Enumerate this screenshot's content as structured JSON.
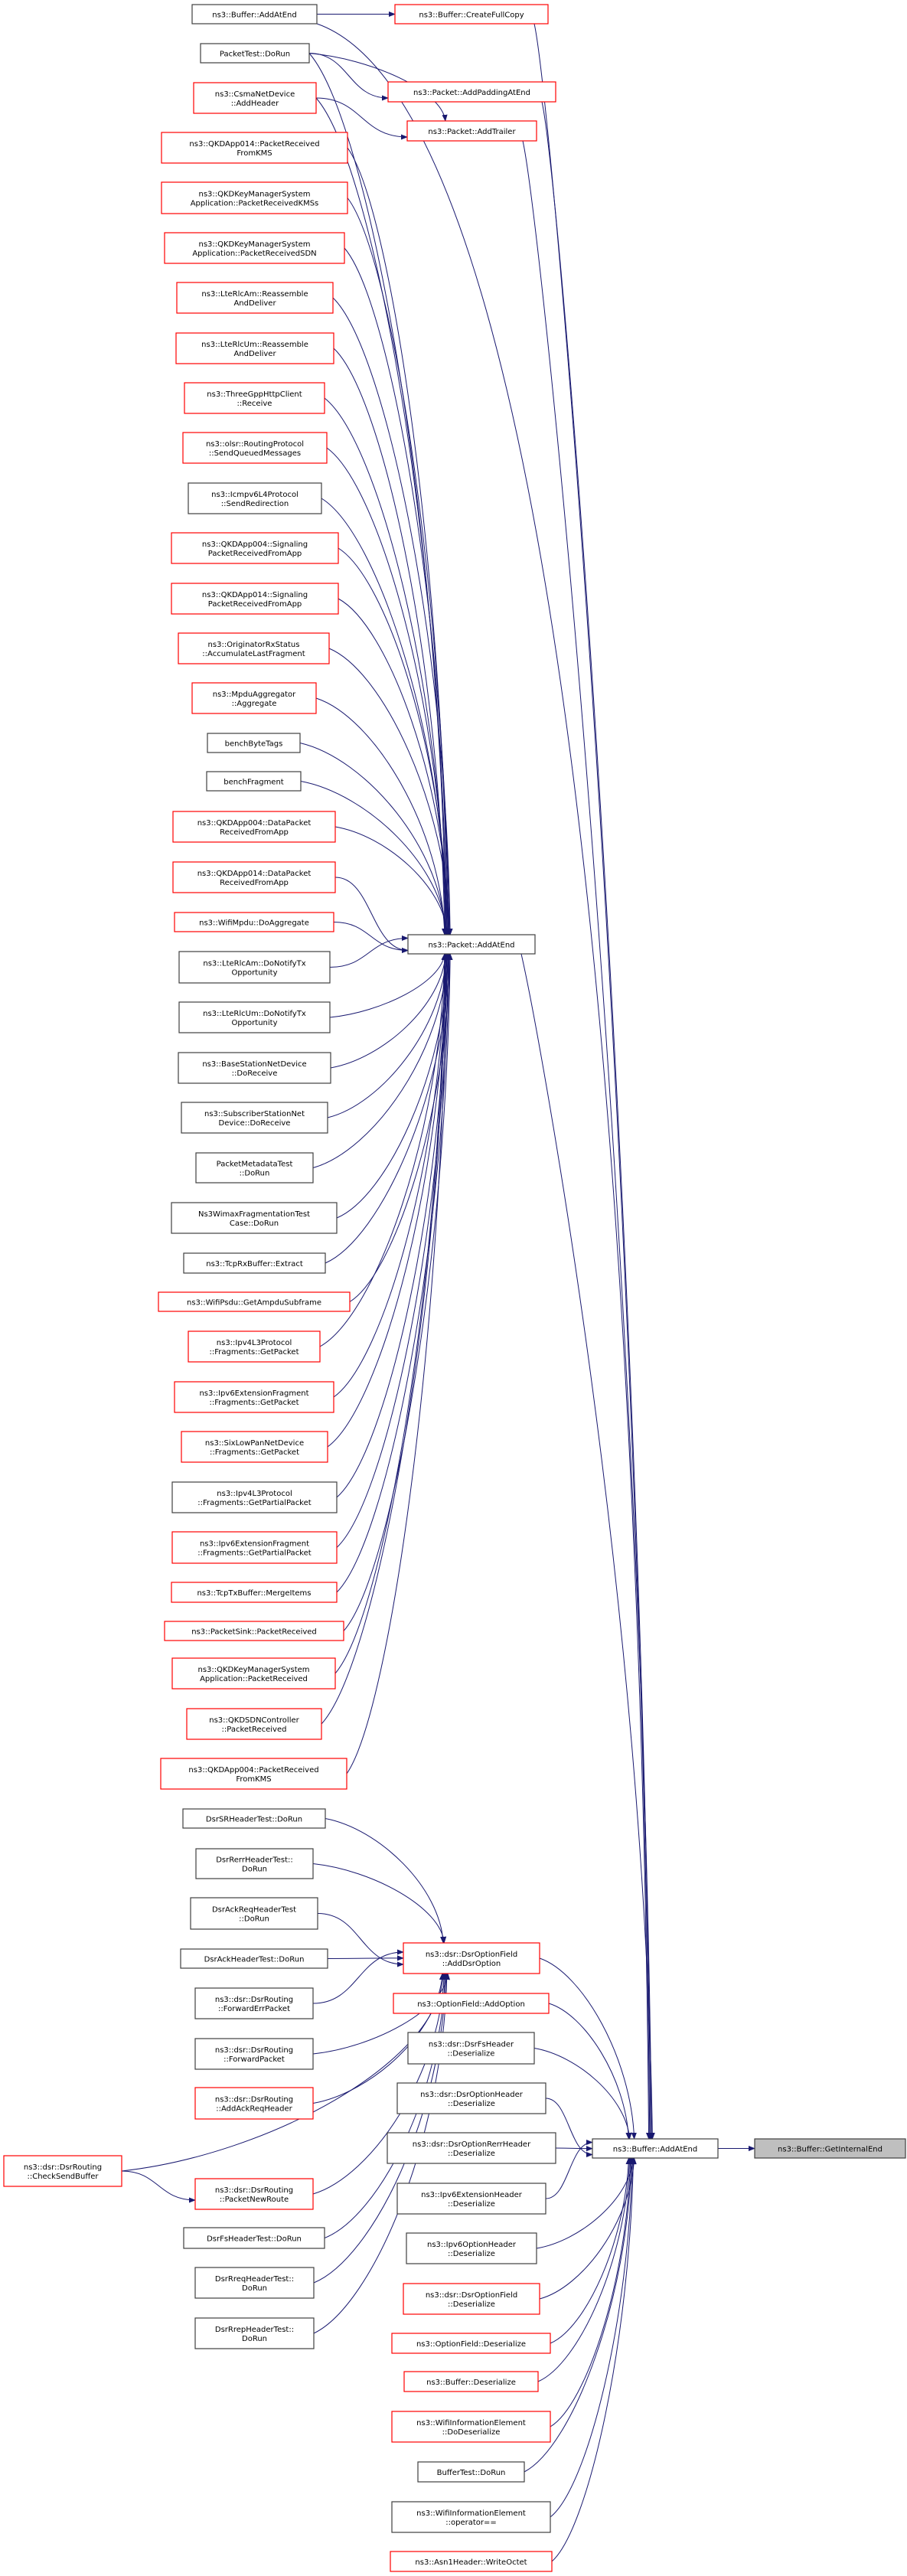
{
  "colors": {
    "edge": "#191970",
    "node_border_red": "#ff0000",
    "node_border_black": "#404040",
    "root_fill": "#bfbfbf"
  },
  "nodes": [
    {
      "id": "buf_addatend_top",
      "style": "black",
      "lines": [
        "ns3::Buffer::AddAtEnd"
      ]
    },
    {
      "id": "createfullcopy",
      "style": "red",
      "lines": [
        "ns3::Buffer::CreateFullCopy"
      ]
    },
    {
      "id": "packettest",
      "style": "black",
      "lines": [
        "PacketTest::DoRun"
      ]
    },
    {
      "id": "csma",
      "style": "red",
      "lines": [
        "ns3::CsmaNetDevice",
        "::AddHeader"
      ]
    },
    {
      "id": "addpadding",
      "style": "red",
      "lines": [
        "ns3::Packet::AddPaddingAtEnd"
      ]
    },
    {
      "id": "addtrailer",
      "style": "red",
      "lines": [
        "ns3::Packet::AddTrailer"
      ]
    },
    {
      "id": "qkd014kms",
      "style": "red",
      "lines": [
        "ns3::QKDApp014::PacketReceived",
        "FromKMS"
      ]
    },
    {
      "id": "kmss",
      "style": "red",
      "lines": [
        "ns3::QKDKeyManagerSystem",
        "Application::PacketReceivedKMSs"
      ]
    },
    {
      "id": "sdn",
      "style": "red",
      "lines": [
        "ns3::QKDKeyManagerSystem",
        "Application::PacketReceivedSDN"
      ]
    },
    {
      "id": "ltam_reas",
      "style": "red",
      "lines": [
        "ns3::LteRlcAm::Reassemble",
        "AndDeliver"
      ]
    },
    {
      "id": "ltum_reas",
      "style": "red",
      "lines": [
        "ns3::LteRlcUm::Reassemble",
        "AndDeliver"
      ]
    },
    {
      "id": "threegpp",
      "style": "red",
      "lines": [
        "ns3::ThreeGppHttpClient",
        "::Receive"
      ]
    },
    {
      "id": "olsr",
      "style": "red",
      "lines": [
        "ns3::olsr::RoutingProtocol",
        "::SendQueuedMessages"
      ]
    },
    {
      "id": "icmpv6",
      "style": "black",
      "lines": [
        "ns3::Icmpv6L4Protocol",
        "::SendRedirection"
      ]
    },
    {
      "id": "sig004",
      "style": "red",
      "lines": [
        "ns3::QKDApp004::Signaling",
        "PacketReceivedFromApp"
      ]
    },
    {
      "id": "sig014",
      "style": "red",
      "lines": [
        "ns3::QKDApp014::Signaling",
        "PacketReceivedFromApp"
      ]
    },
    {
      "id": "orig",
      "style": "red",
      "lines": [
        "ns3::OriginatorRxStatus",
        "::AccumulateLastFragment"
      ]
    },
    {
      "id": "mpdu",
      "style": "red",
      "lines": [
        "ns3::MpduAggregator",
        "::Aggregate"
      ]
    },
    {
      "id": "benchbyte",
      "style": "black",
      "lines": [
        "benchByteTags"
      ]
    },
    {
      "id": "benchfrag",
      "style": "black",
      "lines": [
        "benchFragment"
      ]
    },
    {
      "id": "dp004",
      "style": "red",
      "lines": [
        "ns3::QKDApp004::DataPacket",
        "ReceivedFromApp"
      ]
    },
    {
      "id": "dp014",
      "style": "red",
      "lines": [
        "ns3::QKDApp014::DataPacket",
        "ReceivedFromApp"
      ]
    },
    {
      "id": "wifimpdu",
      "style": "red",
      "lines": [
        "ns3::WifiMpdu::DoAggregate"
      ]
    },
    {
      "id": "ltam_tx",
      "style": "black",
      "lines": [
        "ns3::LteRlcAm::DoNotifyTx",
        "Opportunity"
      ]
    },
    {
      "id": "ltum_tx",
      "style": "black",
      "lines": [
        "ns3::LteRlcUm::DoNotifyTx",
        "Opportunity"
      ]
    },
    {
      "id": "bs",
      "style": "black",
      "lines": [
        "ns3::BaseStationNetDevice",
        "::DoReceive"
      ]
    },
    {
      "id": "ss",
      "style": "black",
      "lines": [
        "ns3::SubscriberStationNet",
        "Device::DoReceive"
      ]
    },
    {
      "id": "pmt",
      "style": "black",
      "lines": [
        "PacketMetadataTest",
        "::DoRun"
      ]
    },
    {
      "id": "wimax",
      "style": "black",
      "lines": [
        "Ns3WimaxFragmentationTest",
        "Case::DoRun"
      ]
    },
    {
      "id": "tcprx",
      "style": "black",
      "lines": [
        "ns3::TcpRxBuffer::Extract"
      ]
    },
    {
      "id": "psdu",
      "style": "red",
      "lines": [
        "ns3::WifiPsdu::GetAmpduSubframe"
      ]
    },
    {
      "id": "ipv4gp",
      "style": "red",
      "lines": [
        "ns3::Ipv4L3Protocol",
        "::Fragments::GetPacket"
      ]
    },
    {
      "id": "ipv6gp",
      "style": "red",
      "lines": [
        "ns3::Ipv6ExtensionFragment",
        "::Fragments::GetPacket"
      ]
    },
    {
      "id": "sixlow",
      "style": "red",
      "lines": [
        "ns3::SixLowPanNetDevice",
        "::Fragments::GetPacket"
      ]
    },
    {
      "id": "ipv4gpp",
      "style": "black",
      "lines": [
        "ns3::Ipv4L3Protocol",
        "::Fragments::GetPartialPacket"
      ]
    },
    {
      "id": "ipv6gpp",
      "style": "red",
      "lines": [
        "ns3::Ipv6ExtensionFragment",
        "::Fragments::GetPartialPacket"
      ]
    },
    {
      "id": "tcptx",
      "style": "red",
      "lines": [
        "ns3::TcpTxBuffer::MergeItems"
      ]
    },
    {
      "id": "sink",
      "style": "red",
      "lines": [
        "ns3::PacketSink::PacketReceived"
      ]
    },
    {
      "id": "kmspr",
      "style": "red",
      "lines": [
        "ns3::QKDKeyManagerSystem",
        "Application::PacketReceived"
      ]
    },
    {
      "id": "sdnpr",
      "style": "red",
      "lines": [
        "ns3::QKDSDNController",
        "::PacketReceived"
      ]
    },
    {
      "id": "qkd004kms",
      "style": "red",
      "lines": [
        "ns3::QKDApp004::PacketReceived",
        "FromKMS"
      ]
    },
    {
      "id": "pkt_addatend",
      "style": "black",
      "lines": [
        "ns3::Packet::AddAtEnd"
      ]
    },
    {
      "id": "dsrsr",
      "style": "black",
      "lines": [
        "DsrSRHeaderTest::DoRun"
      ]
    },
    {
      "id": "dsrrerr",
      "style": "black",
      "lines": [
        "DsrRerrHeaderTest::",
        "DoRun"
      ]
    },
    {
      "id": "dsrackreq",
      "style": "black",
      "lines": [
        "DsrAckReqHeaderTest",
        "::DoRun"
      ]
    },
    {
      "id": "dsrack",
      "style": "black",
      "lines": [
        "DsrAckHeaderTest::DoRun"
      ]
    },
    {
      "id": "adddsropt",
      "style": "red",
      "lines": [
        "ns3::dsr::DsrOptionField",
        "::AddDsrOption"
      ]
    },
    {
      "id": "fwderr",
      "style": "black",
      "lines": [
        "ns3::dsr::DsrRouting",
        "::ForwardErrPacket"
      ]
    },
    {
      "id": "fwd",
      "style": "black",
      "lines": [
        "ns3::dsr::DsrRouting",
        "::ForwardPacket"
      ]
    },
    {
      "id": "ackreqhdr",
      "style": "red",
      "lines": [
        "ns3::dsr::DsrRouting",
        "::AddAckReqHeader"
      ]
    },
    {
      "id": "checksend",
      "style": "red",
      "lines": [
        "ns3::dsr::DsrRouting",
        "::CheckSendBuffer"
      ]
    },
    {
      "id": "newroute",
      "style": "red",
      "lines": [
        "ns3::dsr::DsrRouting",
        "::PacketNewRoute"
      ]
    },
    {
      "id": "dsrfs_test",
      "style": "black",
      "lines": [
        "DsrFsHeaderTest::DoRun"
      ]
    },
    {
      "id": "rreq",
      "style": "black",
      "lines": [
        "DsrRreqHeaderTest::",
        "DoRun"
      ]
    },
    {
      "id": "rrep",
      "style": "black",
      "lines": [
        "DsrRrepHeaderTest::",
        "DoRun"
      ]
    },
    {
      "id": "addoption",
      "style": "red",
      "lines": [
        "ns3::OptionField::AddOption"
      ]
    },
    {
      "id": "dsrfs_deser",
      "style": "black",
      "lines": [
        "ns3::dsr::DsrFsHeader",
        "::Deserialize"
      ]
    },
    {
      "id": "dsroh_deser",
      "style": "black",
      "lines": [
        "ns3::dsr::DsrOptionHeader",
        "::Deserialize"
      ]
    },
    {
      "id": "rerr_deser",
      "style": "black",
      "lines": [
        "ns3::dsr::DsrOptionRerrHeader",
        "::Deserialize"
      ]
    },
    {
      "id": "buf_addatend",
      "style": "black",
      "lines": [
        "ns3::Buffer::AddAtEnd"
      ]
    },
    {
      "id": "getinternalend",
      "style": "root",
      "lines": [
        "ns3::Buffer::GetInternalEnd"
      ]
    },
    {
      "id": "ipv6ext",
      "style": "black",
      "lines": [
        "ns3::Ipv6ExtensionHeader",
        "::Deserialize"
      ]
    },
    {
      "id": "ipv6opt",
      "style": "black",
      "lines": [
        "ns3::Ipv6OptionHeader",
        "::Deserialize"
      ]
    },
    {
      "id": "dsrof_deser",
      "style": "red",
      "lines": [
        "ns3::dsr::DsrOptionField",
        "::Deserialize"
      ]
    },
    {
      "id": "of_deser",
      "style": "red",
      "lines": [
        "ns3::OptionField::Deserialize"
      ]
    },
    {
      "id": "buf_deser",
      "style": "red",
      "lines": [
        "ns3::Buffer::Deserialize"
      ]
    },
    {
      "id": "wie_dodeser",
      "style": "red",
      "lines": [
        "ns3::WifiInformationElement",
        "::DoDeserialize"
      ]
    },
    {
      "id": "buftest",
      "style": "black",
      "lines": [
        "BufferTest::DoRun"
      ]
    },
    {
      "id": "wie_op",
      "style": "black",
      "lines": [
        "ns3::WifiInformationElement",
        "::operator=="
      ]
    },
    {
      "id": "asn1",
      "style": "red",
      "lines": [
        "ns3::Asn1Header::WriteOctet"
      ]
    }
  ],
  "edges": [
    [
      "buf_addatend",
      "getinternalend"
    ],
    [
      "buf_addatend_top",
      "createfullcopy"
    ],
    [
      "buf_addatend_top",
      "buf_addatend"
    ],
    [
      "createfullcopy",
      "buf_addatend"
    ],
    [
      "addpadding",
      "buf_addatend"
    ],
    [
      "addtrailer",
      "buf_addatend"
    ],
    [
      "pkt_addatend",
      "buf_addatend"
    ],
    [
      "packettest",
      "addpadding"
    ],
    [
      "packettest",
      "addtrailer"
    ],
    [
      "packettest",
      "pkt_addatend"
    ],
    [
      "csma",
      "addtrailer"
    ],
    [
      "csma",
      "pkt_addatend"
    ],
    [
      "qkd014kms",
      "pkt_addatend"
    ],
    [
      "kmss",
      "pkt_addatend"
    ],
    [
      "sdn",
      "pkt_addatend"
    ],
    [
      "ltam_reas",
      "pkt_addatend"
    ],
    [
      "ltum_reas",
      "pkt_addatend"
    ],
    [
      "threegpp",
      "pkt_addatend"
    ],
    [
      "olsr",
      "pkt_addatend"
    ],
    [
      "icmpv6",
      "pkt_addatend"
    ],
    [
      "sig004",
      "pkt_addatend"
    ],
    [
      "sig014",
      "pkt_addatend"
    ],
    [
      "orig",
      "pkt_addatend"
    ],
    [
      "mpdu",
      "pkt_addatend"
    ],
    [
      "benchbyte",
      "pkt_addatend"
    ],
    [
      "benchfrag",
      "pkt_addatend"
    ],
    [
      "dp004",
      "pkt_addatend"
    ],
    [
      "dp014",
      "pkt_addatend"
    ],
    [
      "wifimpdu",
      "pkt_addatend"
    ],
    [
      "ltam_tx",
      "pkt_addatend"
    ],
    [
      "ltum_tx",
      "pkt_addatend"
    ],
    [
      "bs",
      "pkt_addatend"
    ],
    [
      "ss",
      "pkt_addatend"
    ],
    [
      "pmt",
      "pkt_addatend"
    ],
    [
      "wimax",
      "pkt_addatend"
    ],
    [
      "tcprx",
      "pkt_addatend"
    ],
    [
      "psdu",
      "pkt_addatend"
    ],
    [
      "ipv4gp",
      "pkt_addatend"
    ],
    [
      "ipv6gp",
      "pkt_addatend"
    ],
    [
      "sixlow",
      "pkt_addatend"
    ],
    [
      "ipv4gpp",
      "pkt_addatend"
    ],
    [
      "ipv6gpp",
      "pkt_addatend"
    ],
    [
      "tcptx",
      "pkt_addatend"
    ],
    [
      "sink",
      "pkt_addatend"
    ],
    [
      "kmspr",
      "pkt_addatend"
    ],
    [
      "sdnpr",
      "pkt_addatend"
    ],
    [
      "qkd004kms",
      "pkt_addatend"
    ],
    [
      "dsrsr",
      "adddsropt"
    ],
    [
      "dsrrerr",
      "adddsropt"
    ],
    [
      "dsrackreq",
      "adddsropt"
    ],
    [
      "dsrack",
      "adddsropt"
    ],
    [
      "fwderr",
      "adddsropt"
    ],
    [
      "fwd",
      "adddsropt"
    ],
    [
      "ackreqhdr",
      "adddsropt"
    ],
    [
      "checksend",
      "adddsropt"
    ],
    [
      "checksend",
      "newroute"
    ],
    [
      "newroute",
      "adddsropt"
    ],
    [
      "dsrfs_test",
      "adddsropt"
    ],
    [
      "rreq",
      "adddsropt"
    ],
    [
      "rrep",
      "adddsropt"
    ],
    [
      "adddsropt",
      "buf_addatend"
    ],
    [
      "addoption",
      "buf_addatend"
    ],
    [
      "dsrfs_deser",
      "buf_addatend"
    ],
    [
      "dsroh_deser",
      "buf_addatend"
    ],
    [
      "rerr_deser",
      "buf_addatend"
    ],
    [
      "ipv6ext",
      "buf_addatend"
    ],
    [
      "ipv6opt",
      "buf_addatend"
    ],
    [
      "dsrof_deser",
      "buf_addatend"
    ],
    [
      "of_deser",
      "buf_addatend"
    ],
    [
      "buf_deser",
      "buf_addatend"
    ],
    [
      "wie_dodeser",
      "buf_addatend"
    ],
    [
      "buftest",
      "buf_addatend"
    ],
    [
      "wie_op",
      "buf_addatend"
    ],
    [
      "asn1",
      "buf_addatend"
    ]
  ]
}
